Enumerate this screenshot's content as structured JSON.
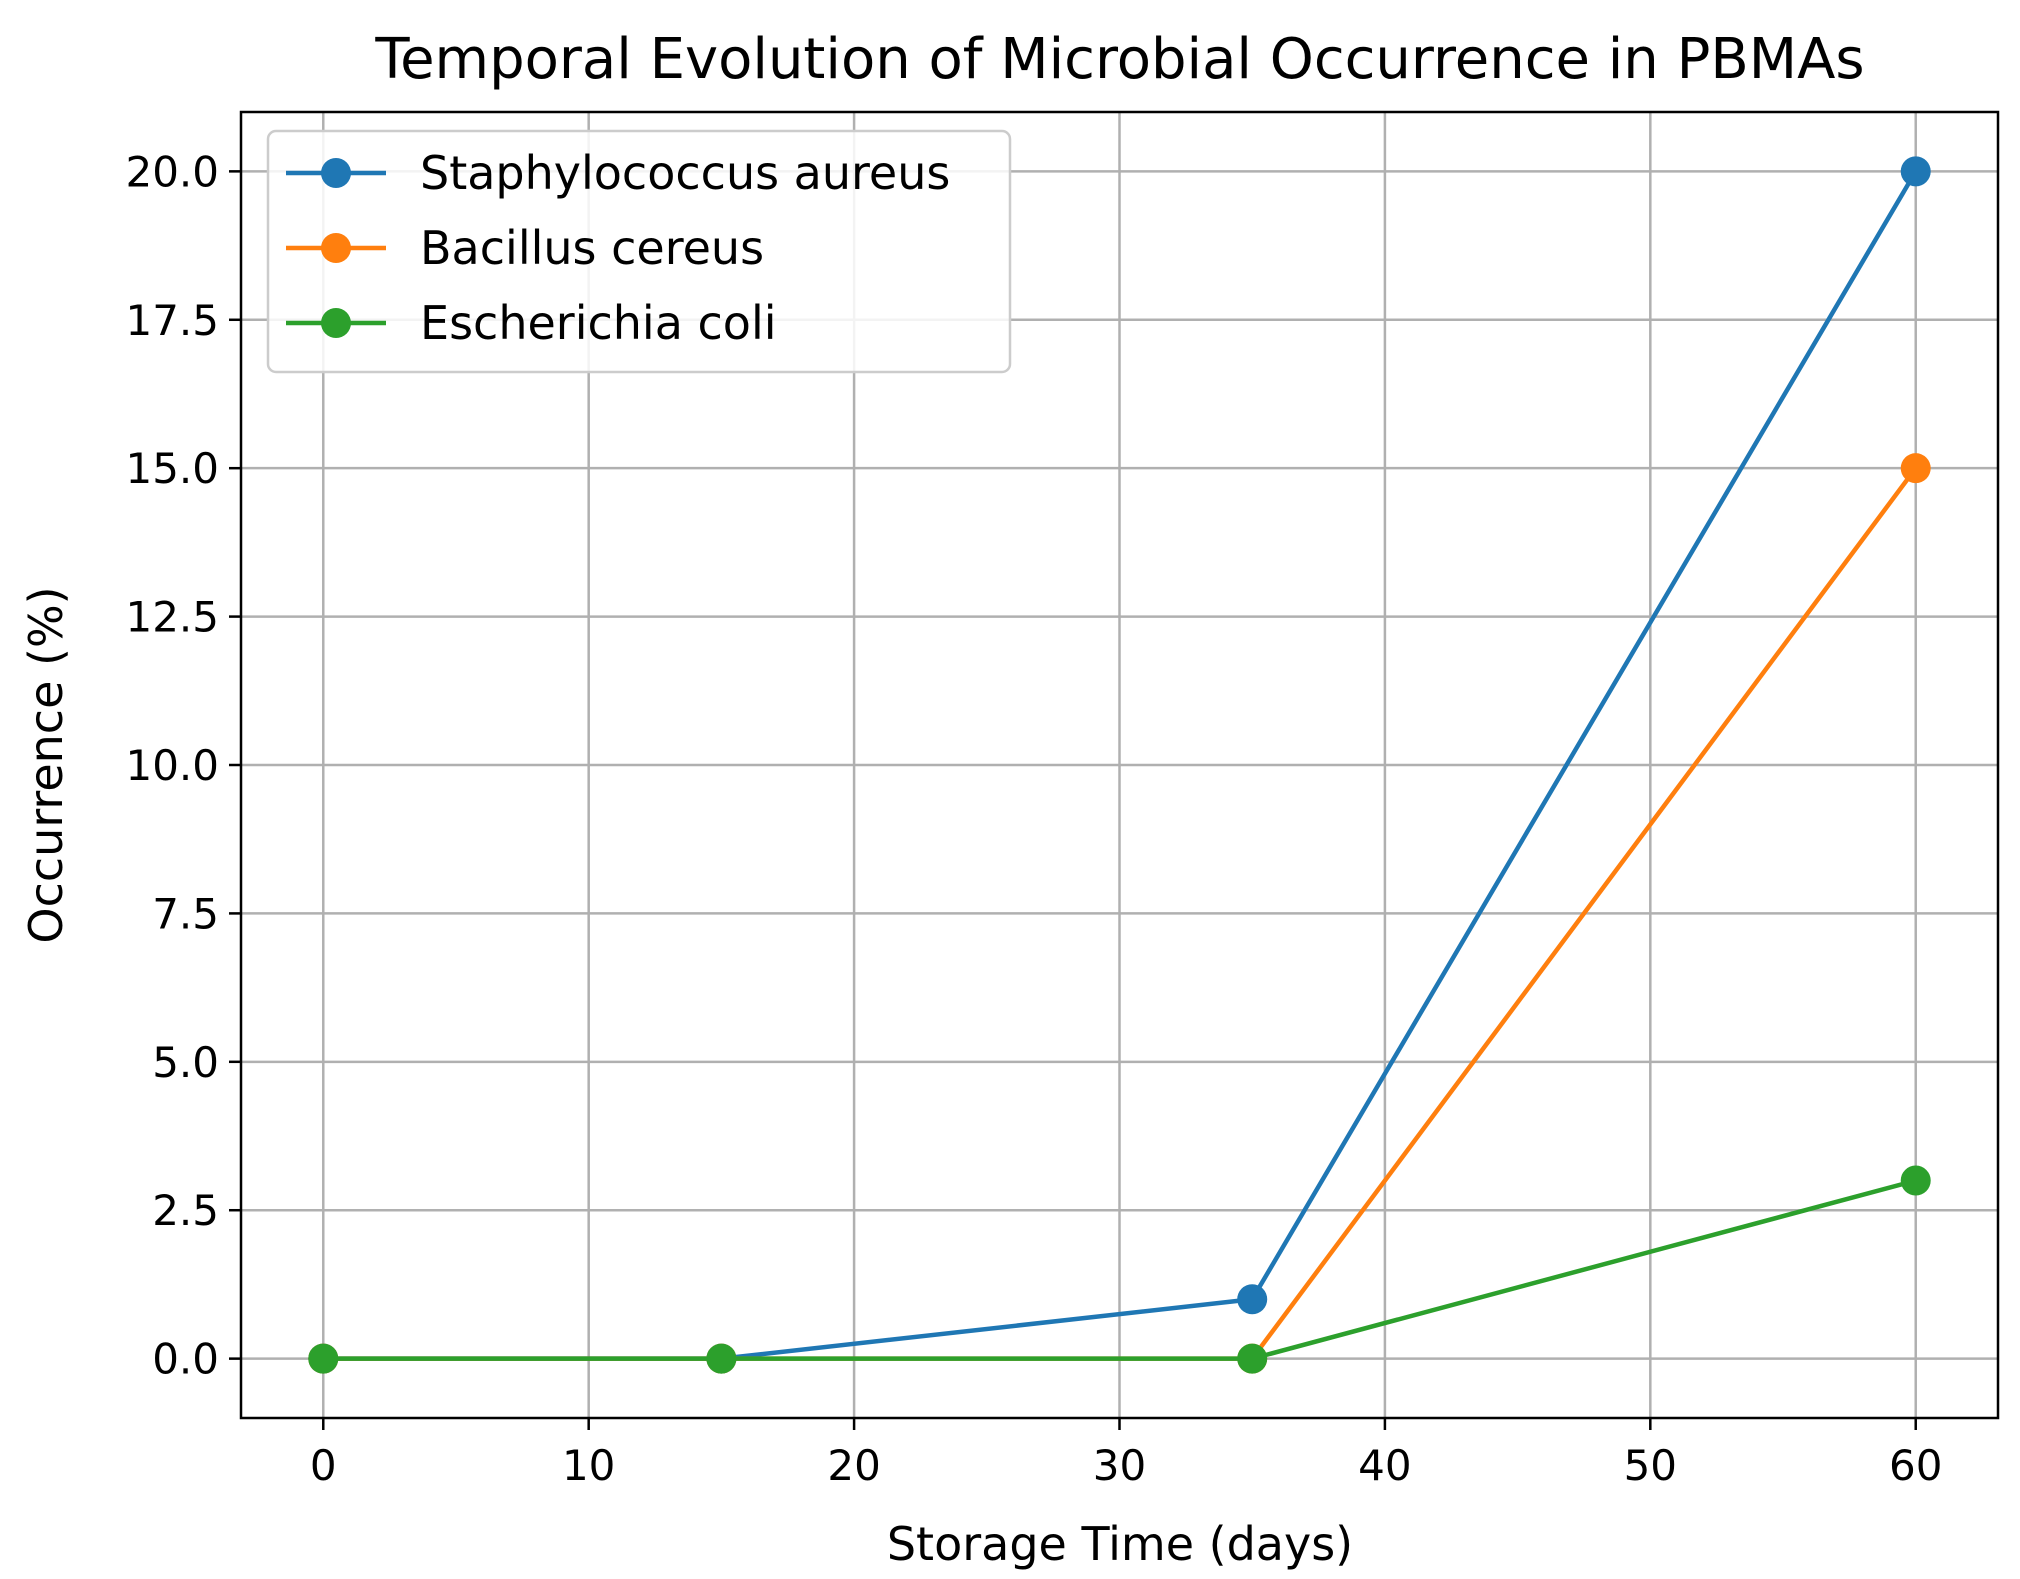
{
  "chart_data": {
    "type": "line",
    "title": "Temporal Evolution of Microbial Occurrence in PBMAs",
    "xlabel": "Storage Time (days)",
    "ylabel": "Occurrence (%)",
    "x": [
      0,
      15,
      35,
      60
    ],
    "xlim": [
      -3.1,
      63.1
    ],
    "ylim": [
      -1.0,
      21.0
    ],
    "x_ticks": [
      0,
      10,
      20,
      30,
      40,
      50,
      60
    ],
    "x_tick_labels": [
      "0",
      "10",
      "20",
      "30",
      "40",
      "50",
      "60"
    ],
    "y_ticks": [
      0,
      2.5,
      5,
      7.5,
      10,
      12.5,
      15,
      17.5,
      20
    ],
    "y_tick_labels": [
      "0.0",
      "2.5",
      "5.0",
      "7.5",
      "10.0",
      "12.5",
      "15.0",
      "17.5",
      "20.0"
    ],
    "grid": true,
    "legend_position": "top-left",
    "series": [
      {
        "name": "Staphylococcus aureus",
        "values": [
          0,
          0,
          1,
          20
        ],
        "color": "#1f77b4"
      },
      {
        "name": "Bacillus cereus",
        "values": [
          0,
          0,
          0,
          15
        ],
        "color": "#ff7f0e"
      },
      {
        "name": "Escherichia coli",
        "values": [
          0,
          0,
          0,
          3
        ],
        "color": "#2ca02c"
      }
    ]
  }
}
